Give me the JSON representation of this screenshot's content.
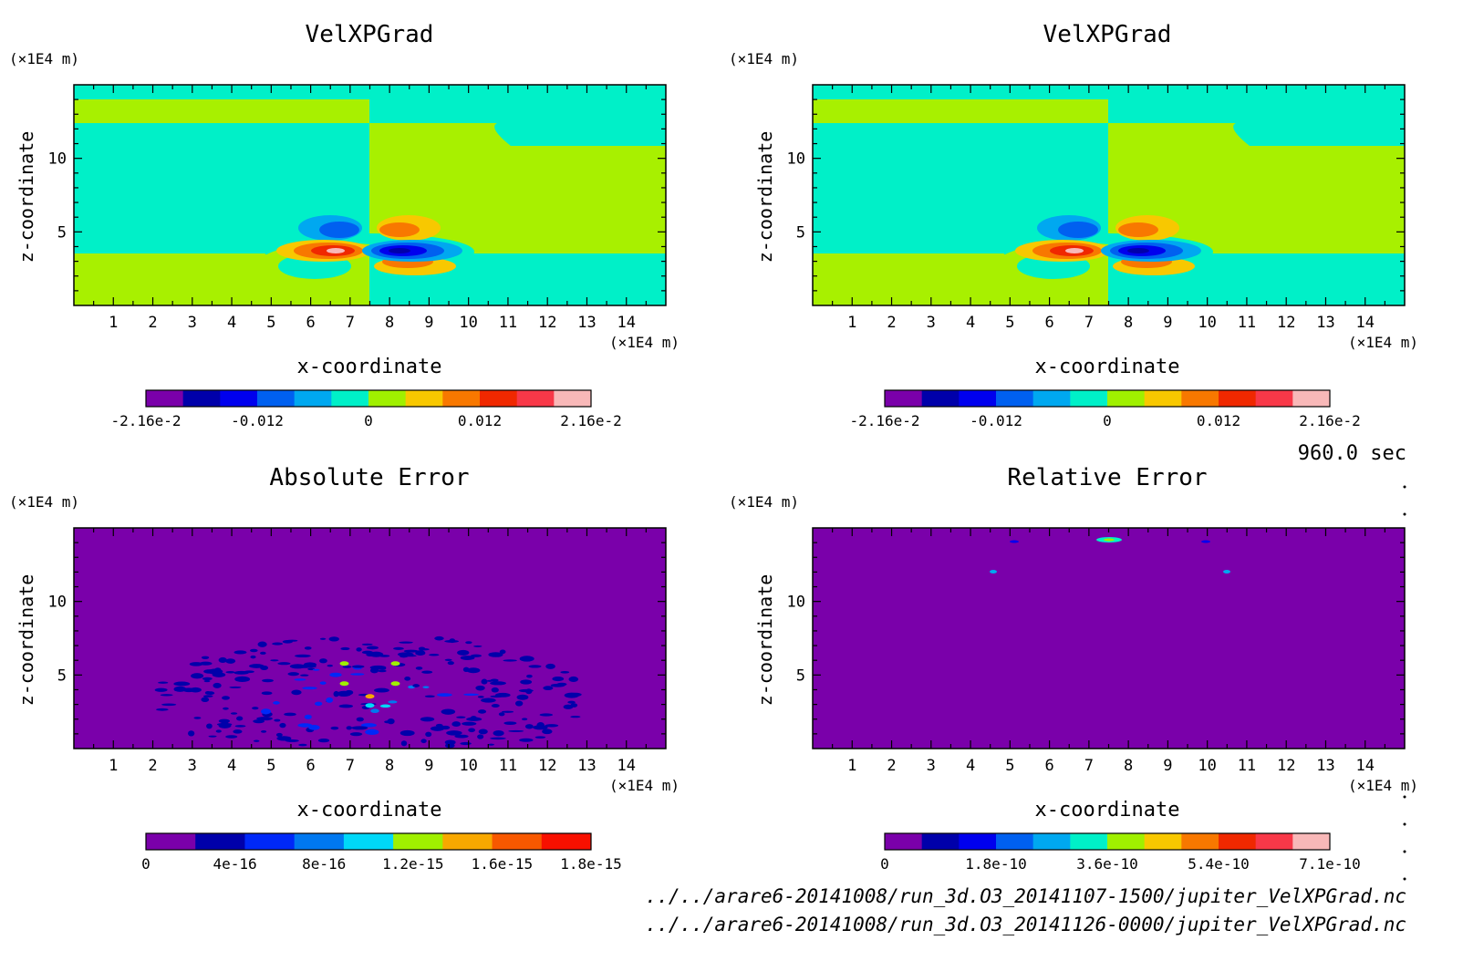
{
  "time_label": "960.0 sec",
  "files": [
    "../../arare6-20141008/run_3d.O3_20141107-1500/jupiter_VelXPGrad.nc",
    "../../arare6-20141008/run_3d.O3_20141126-0000/jupiter_VelXPGrad.nc"
  ],
  "chart_data": [
    {
      "type": "heatmap",
      "title": "VelXPGrad",
      "xlabel": "x-coordinate",
      "ylabel": "z-coordinate",
      "x_unit": "(×1E4 m)",
      "y_unit": "(×1E4 m)",
      "xlim": [
        0,
        15
      ],
      "ylim": [
        0,
        15
      ],
      "x_ticks": [
        "1",
        "2",
        "3",
        "4",
        "5",
        "6",
        "7",
        "8",
        "9",
        "10",
        "11",
        "12",
        "13",
        "14"
      ],
      "y_ticks": [
        "5",
        "10"
      ],
      "colorbar": {
        "colors": [
          "#7a00aa",
          "#0000aa",
          "#0000ee",
          "#0060f0",
          "#00a8f0",
          "#00f0c8",
          "#a0f000",
          "#f8c800",
          "#f87800",
          "#f02800",
          "#f83848",
          "#f8b8b8"
        ],
        "labels": [
          "-2.16e-2",
          "-0.012",
          "0",
          "0.012",
          "2.16e-2"
        ]
      }
    },
    {
      "type": "heatmap",
      "title": "VelXPGrad",
      "xlabel": "x-coordinate",
      "ylabel": "z-coordinate",
      "x_unit": "(×1E4 m)",
      "y_unit": "(×1E4 m)",
      "xlim": [
        0,
        15
      ],
      "ylim": [
        0,
        15
      ],
      "x_ticks": [
        "1",
        "2",
        "3",
        "4",
        "5",
        "6",
        "7",
        "8",
        "9",
        "10",
        "11",
        "12",
        "13",
        "14"
      ],
      "y_ticks": [
        "5",
        "10"
      ],
      "colorbar": {
        "colors": [
          "#7a00aa",
          "#0000aa",
          "#0000ee",
          "#0060f0",
          "#00a8f0",
          "#00f0c8",
          "#a0f000",
          "#f8c800",
          "#f87800",
          "#f02800",
          "#f83848",
          "#f8b8b8"
        ],
        "labels": [
          "-2.16e-2",
          "-0.012",
          "0",
          "0.012",
          "2.16e-2"
        ]
      }
    },
    {
      "type": "heatmap",
      "title": "Absolute Error",
      "xlabel": "x-coordinate",
      "ylabel": "z-coordinate",
      "x_unit": "(×1E4 m)",
      "y_unit": "(×1E4 m)",
      "xlim": [
        0,
        15
      ],
      "ylim": [
        0,
        15
      ],
      "x_ticks": [
        "1",
        "2",
        "3",
        "4",
        "5",
        "6",
        "7",
        "8",
        "9",
        "10",
        "11",
        "12",
        "13",
        "14"
      ],
      "y_ticks": [
        "5",
        "10"
      ],
      "colorbar": {
        "colors": [
          "#7a00aa",
          "#0000aa",
          "#0028f8",
          "#0078f0",
          "#00d8f8",
          "#a0f000",
          "#f8a800",
          "#f85800",
          "#f81000"
        ],
        "labels": [
          "0",
          "4e-16",
          "8e-16",
          "1.2e-15",
          "1.6e-15",
          "1.8e-15"
        ]
      }
    },
    {
      "type": "heatmap",
      "title": "Relative Error",
      "xlabel": "x-coordinate",
      "ylabel": "z-coordinate",
      "x_unit": "(×1E4 m)",
      "y_unit": "(×1E4 m)",
      "xlim": [
        0,
        15
      ],
      "ylim": [
        0,
        15
      ],
      "x_ticks": [
        "1",
        "2",
        "3",
        "4",
        "5",
        "6",
        "7",
        "8",
        "9",
        "10",
        "11",
        "12",
        "13",
        "14"
      ],
      "y_ticks": [
        "5",
        "10"
      ],
      "colorbar": {
        "colors": [
          "#7a00aa",
          "#0000aa",
          "#0000ee",
          "#0060f0",
          "#00a8f0",
          "#00f0c8",
          "#a0f000",
          "#f8c800",
          "#f87800",
          "#f02800",
          "#f83848",
          "#f8b8b8"
        ],
        "labels": [
          "0",
          "1.8e-10",
          "3.6e-10",
          "5.4e-10",
          "7.1e-10"
        ]
      }
    }
  ]
}
